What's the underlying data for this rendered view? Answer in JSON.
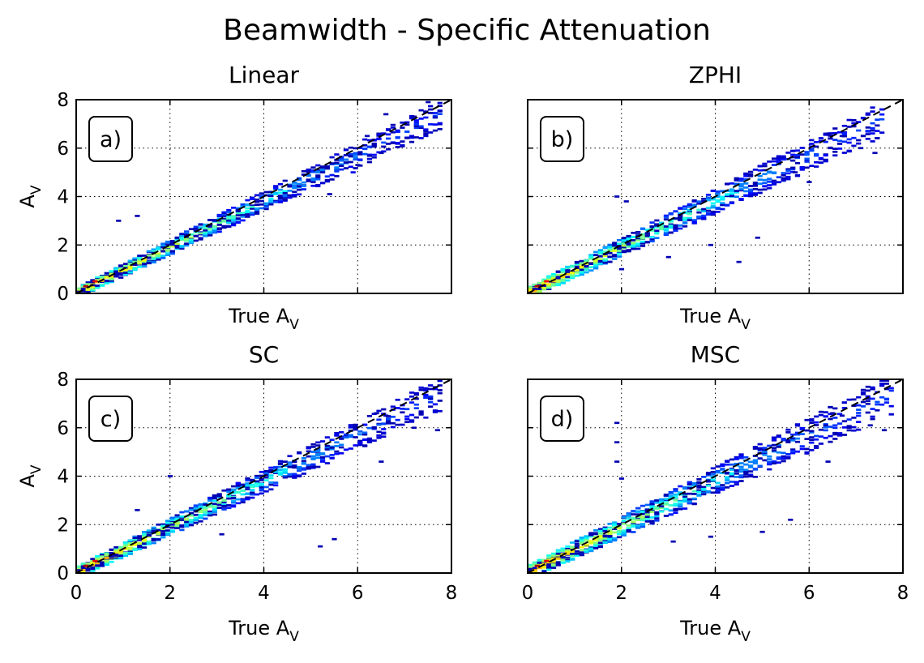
{
  "figure": {
    "suptitle": "Beamwidth - Specific Attenuation"
  },
  "chart_data": [
    {
      "type": "heatmap",
      "panel": "a)",
      "title": "Linear",
      "xlabel": "True A",
      "xlabel_sub": "V",
      "ylabel": "A",
      "ylabel_sub": "V",
      "xlim": [
        0,
        8
      ],
      "ylim": [
        0,
        8
      ],
      "xticks": [
        "0",
        "2",
        "4",
        "6",
        "8"
      ],
      "yticks": [
        "0",
        "2",
        "4",
        "6",
        "8"
      ],
      "show_xticklabels": false,
      "show_yticklabels": true,
      "grid": true,
      "reference_line": {
        "style": "dashed",
        "x": [
          0,
          8
        ],
        "y": [
          0,
          8
        ]
      },
      "bin_width": 0.1,
      "spread": 0.34,
      "max_x": 7.8,
      "colormap": "jet",
      "cells": [
        {
          "x": 0.2,
          "y": 0.3,
          "v": 0.95
        },
        {
          "x": 0.4,
          "y": 0.5,
          "v": 0.9
        },
        {
          "x": 7.2,
          "y": 7.3,
          "v": 0.05
        },
        {
          "x": 7.5,
          "y": 7.9,
          "v": 0.05
        },
        {
          "x": 6.6,
          "y": 7.4,
          "v": 0.05
        },
        {
          "x": 6.2,
          "y": 6.5,
          "v": 0.05
        },
        {
          "x": 6.5,
          "y": 5.8,
          "v": 0.05
        },
        {
          "x": 5.9,
          "y": 5.0,
          "v": 0.1
        },
        {
          "x": 1.3,
          "y": 3.2,
          "v": 0.05
        },
        {
          "x": 0.9,
          "y": 3.0,
          "v": 0.05
        },
        {
          "x": 6.0,
          "y": 5.3,
          "v": 0.05
        },
        {
          "x": 5.4,
          "y": 4.1,
          "v": 0.05
        }
      ]
    },
    {
      "type": "heatmap",
      "panel": "b)",
      "title": "ZPHI",
      "xlabel": "True A",
      "xlabel_sub": "V",
      "ylabel": "",
      "ylabel_sub": "",
      "xlim": [
        0,
        8
      ],
      "ylim": [
        0,
        8
      ],
      "xticks": [
        "0",
        "2",
        "4",
        "6",
        "8"
      ],
      "yticks": [
        "0",
        "2",
        "4",
        "6",
        "8"
      ],
      "show_xticklabels": false,
      "show_yticklabels": false,
      "grid": true,
      "reference_line": {
        "style": "dashed",
        "x": [
          0,
          8
        ],
        "y": [
          0,
          8
        ]
      },
      "bin_width": 0.1,
      "spread": 0.42,
      "max_x": 7.6,
      "colormap": "jet",
      "cells": [
        {
          "x": 0.2,
          "y": 0.3,
          "v": 0.95
        },
        {
          "x": 0.4,
          "y": 0.5,
          "v": 0.88
        },
        {
          "x": 6.4,
          "y": 6.6,
          "v": 0.05
        },
        {
          "x": 6.7,
          "y": 6.5,
          "v": 0.05
        },
        {
          "x": 7.1,
          "y": 6.0,
          "v": 0.05
        },
        {
          "x": 7.4,
          "y": 5.8,
          "v": 0.05
        },
        {
          "x": 6.0,
          "y": 4.6,
          "v": 0.05
        },
        {
          "x": 5.7,
          "y": 5.0,
          "v": 0.05
        },
        {
          "x": 2.0,
          "y": 1.0,
          "v": 0.05
        },
        {
          "x": 3.9,
          "y": 2.0,
          "v": 0.05
        },
        {
          "x": 4.5,
          "y": 1.3,
          "v": 0.05
        },
        {
          "x": 4.9,
          "y": 2.3,
          "v": 0.05
        },
        {
          "x": 1.9,
          "y": 4.0,
          "v": 0.05
        },
        {
          "x": 2.1,
          "y": 3.8,
          "v": 0.05
        },
        {
          "x": 3.0,
          "y": 1.5,
          "v": 0.05
        }
      ]
    },
    {
      "type": "heatmap",
      "panel": "c)",
      "title": "SC",
      "xlabel": "True A",
      "xlabel_sub": "V",
      "ylabel": "A",
      "ylabel_sub": "V",
      "xlim": [
        0,
        8
      ],
      "ylim": [
        0,
        8
      ],
      "xticks": [
        "0",
        "2",
        "4",
        "6",
        "8"
      ],
      "yticks": [
        "0",
        "2",
        "4",
        "6",
        "8"
      ],
      "show_xticklabels": true,
      "show_yticklabels": true,
      "grid": true,
      "reference_line": {
        "style": "dashed",
        "x": [
          0,
          8
        ],
        "y": [
          0,
          8
        ]
      },
      "bin_width": 0.1,
      "spread": 0.4,
      "max_x": 7.8,
      "colormap": "jet",
      "cells": [
        {
          "x": 0.2,
          "y": 0.3,
          "v": 0.95
        },
        {
          "x": 0.4,
          "y": 0.5,
          "v": 0.9
        },
        {
          "x": 6.4,
          "y": 6.6,
          "v": 0.05
        },
        {
          "x": 6.6,
          "y": 6.5,
          "v": 0.05
        },
        {
          "x": 7.2,
          "y": 6.0,
          "v": 0.05
        },
        {
          "x": 7.7,
          "y": 5.9,
          "v": 0.05
        },
        {
          "x": 6.5,
          "y": 4.6,
          "v": 0.05
        },
        {
          "x": 5.5,
          "y": 1.4,
          "v": 0.05
        },
        {
          "x": 5.2,
          "y": 1.1,
          "v": 0.05
        },
        {
          "x": 3.1,
          "y": 1.6,
          "v": 0.05
        },
        {
          "x": 1.3,
          "y": 2.6,
          "v": 0.05
        },
        {
          "x": 2.0,
          "y": 4.0,
          "v": 0.05
        }
      ]
    },
    {
      "type": "heatmap",
      "panel": "d)",
      "title": "MSC",
      "xlabel": "True A",
      "xlabel_sub": "V",
      "ylabel": "",
      "ylabel_sub": "",
      "xlim": [
        0,
        8
      ],
      "ylim": [
        0,
        8
      ],
      "xticks": [
        "0",
        "2",
        "4",
        "6",
        "8"
      ],
      "yticks": [
        "0",
        "2",
        "4",
        "6",
        "8"
      ],
      "show_xticklabels": true,
      "show_yticklabels": false,
      "grid": true,
      "reference_line": {
        "style": "dashed",
        "x": [
          0,
          8
        ],
        "y": [
          0,
          8
        ]
      },
      "bin_width": 0.1,
      "spread": 0.48,
      "max_x": 7.8,
      "colormap": "jet",
      "cells": [
        {
          "x": 0.2,
          "y": 0.3,
          "v": 0.95
        },
        {
          "x": 0.4,
          "y": 0.5,
          "v": 0.9
        },
        {
          "x": 6.5,
          "y": 6.6,
          "v": 0.05
        },
        {
          "x": 6.7,
          "y": 6.5,
          "v": 0.05
        },
        {
          "x": 7.3,
          "y": 6.1,
          "v": 0.05
        },
        {
          "x": 7.6,
          "y": 5.9,
          "v": 0.05
        },
        {
          "x": 6.4,
          "y": 4.6,
          "v": 0.05
        },
        {
          "x": 1.9,
          "y": 6.2,
          "v": 0.05
        },
        {
          "x": 1.9,
          "y": 5.4,
          "v": 0.05
        },
        {
          "x": 1.9,
          "y": 4.6,
          "v": 0.05
        },
        {
          "x": 2.0,
          "y": 3.9,
          "v": 0.05
        },
        {
          "x": 5.6,
          "y": 2.2,
          "v": 0.05
        },
        {
          "x": 5.0,
          "y": 1.7,
          "v": 0.05
        },
        {
          "x": 3.9,
          "y": 1.5,
          "v": 0.05
        },
        {
          "x": 3.1,
          "y": 1.3,
          "v": 0.05
        }
      ]
    }
  ]
}
